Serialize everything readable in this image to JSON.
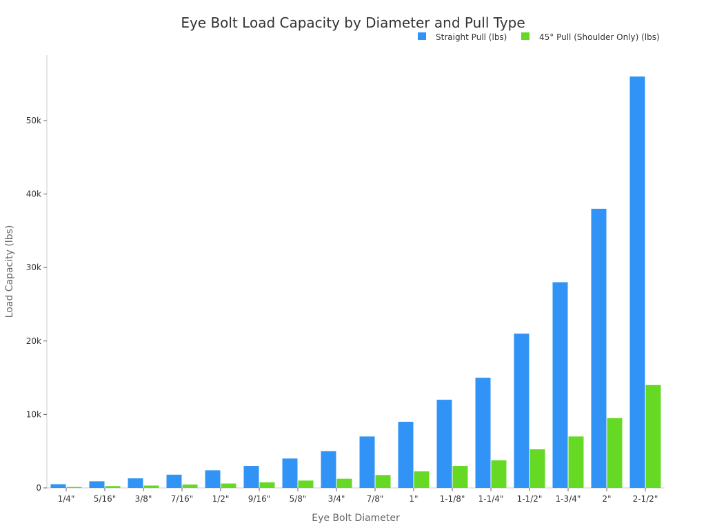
{
  "chart_data": {
    "type": "bar",
    "title": "Eye Bolt Load Capacity by Diameter and Pull Type",
    "xlabel": "Eye Bolt Diameter",
    "ylabel": "Load Capacity (lbs)",
    "ylim": [
      0,
      58000
    ],
    "yticks": [
      0,
      10000,
      20000,
      30000,
      40000,
      50000
    ],
    "ytick_labels": [
      "0",
      "10k",
      "20k",
      "30k",
      "40k",
      "50k"
    ],
    "legend_position": "top-right",
    "grid": false,
    "categories": [
      "1/4\"",
      "5/16\"",
      "3/8\"",
      "7/16\"",
      "1/2\"",
      "9/16\"",
      "5/8\"",
      "3/4\"",
      "7/8\"",
      "1\"",
      "1-1/8\"",
      "1-1/4\"",
      "1-1/2\"",
      "1-3/4\"",
      "2\"",
      "2-1/2\""
    ],
    "series": [
      {
        "name": "Straight Pull (lbs)",
        "color": "#3093f5",
        "values": [
          500,
          900,
          1300,
          1800,
          2400,
          3000,
          4000,
          5000,
          7000,
          9000,
          12000,
          15000,
          21000,
          28000,
          38000,
          56000
        ]
      },
      {
        "name": "45° Pull (Shoulder Only) (lbs)",
        "color": "#66d924",
        "values": [
          125,
          250,
          325,
          450,
          600,
          750,
          1000,
          1250,
          1750,
          2250,
          3000,
          3750,
          5250,
          7000,
          9500,
          14000
        ]
      }
    ]
  }
}
